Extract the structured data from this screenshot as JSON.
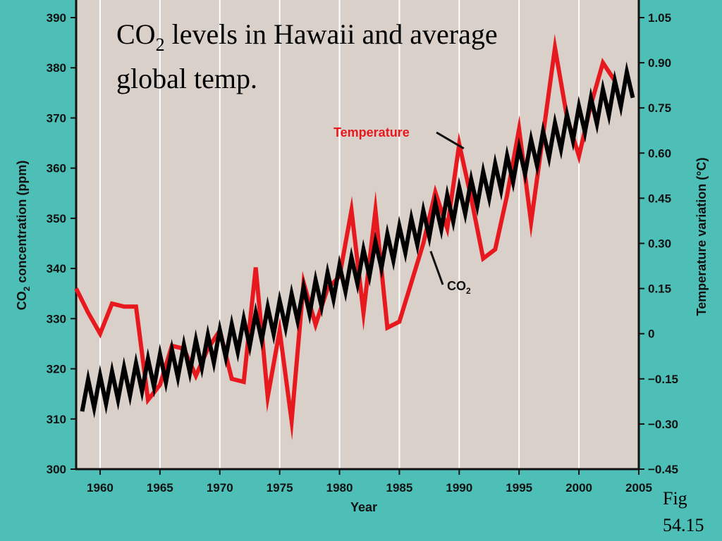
{
  "slide": {
    "title_line1_prefix": "CO",
    "title_line1_sub": "2",
    "title_line1_suffix": " levels in Hawaii and average",
    "title_line2": "global temp.",
    "caption_line1": "Fig",
    "caption_line2": "54.15"
  },
  "colors": {
    "slide_background": "#4dbfb7",
    "plot_background": "#d9d0c9",
    "gridline": "#ffffff",
    "temperature": "#e8191e",
    "co2": "#000000"
  },
  "chart_data": {
    "type": "line",
    "xlabel": "Year",
    "ylabel_left_prefix": "CO",
    "ylabel_left_sub": "2",
    "ylabel_left_suffix": " concentration (ppm)",
    "ylabel_right": "Temperature variation (°C)",
    "xlim": [
      1958,
      2005
    ],
    "ylim_left": [
      300,
      390
    ],
    "ylim_right": [
      -0.45,
      1.05
    ],
    "x_ticks": [
      1960,
      1965,
      1970,
      1975,
      1980,
      1985,
      1990,
      1995,
      2000,
      2005
    ],
    "y_ticks_left": [
      300,
      310,
      320,
      330,
      340,
      350,
      360,
      370,
      380,
      390
    ],
    "y_ticks_right": [
      "−0.45",
      "−0.30",
      "−0.15",
      "0",
      "0.15",
      "0.30",
      "0.45",
      "0.60",
      "0.75",
      "0.90",
      "1.05"
    ],
    "grid": "vertical lines at x ticks",
    "annotations": [
      {
        "text": "Temperature",
        "series": "Temperature",
        "at_year": 1990.5
      },
      {
        "text_prefix": "CO",
        "text_sub": "2",
        "series": "CO2",
        "at_year": 1987.5
      }
    ],
    "series": [
      {
        "name": "Temperature",
        "axis": "right",
        "color": "#e8191e",
        "x": [
          1958,
          1959,
          1960,
          1961,
          1962,
          1963,
          1964,
          1965,
          1966,
          1967,
          1968,
          1969,
          1970,
          1971,
          1972,
          1973,
          1974,
          1975,
          1976,
          1977,
          1978,
          1979,
          1980,
          1981,
          1982,
          1983,
          1984,
          1985,
          1986,
          1987,
          1988,
          1989,
          1990,
          1991,
          1992,
          1993,
          1994,
          1995,
          1996,
          1997,
          1998,
          1999,
          2000,
          2001,
          2002,
          2003
        ],
        "values": [
          0.15,
          0.07,
          0.0,
          0.1,
          0.09,
          0.09,
          -0.22,
          -0.17,
          -0.04,
          -0.05,
          -0.14,
          -0.05,
          0.01,
          -0.15,
          -0.16,
          0.22,
          -0.21,
          0.01,
          -0.29,
          0.17,
          0.03,
          0.15,
          0.19,
          0.41,
          0.07,
          0.41,
          0.02,
          0.04,
          0.17,
          0.3,
          0.47,
          0.35,
          0.63,
          0.45,
          0.25,
          0.28,
          0.46,
          0.68,
          0.37,
          0.66,
          0.95,
          0.72,
          0.59,
          0.76,
          0.9,
          0.84
        ]
      },
      {
        "name": "CO2",
        "axis": "left",
        "color": "#000000",
        "x_start": 1958.5,
        "x_end": 2004.5,
        "base_start": 314.5,
        "annual_growth": [
          [
            1958.5,
            0.75
          ],
          [
            1970,
            1.05
          ],
          [
            1980,
            1.55
          ],
          [
            1990,
            1.55
          ],
          [
            2004.5,
            1.75
          ]
        ],
        "seasonal_amplitude": 3.0
      }
    ]
  }
}
